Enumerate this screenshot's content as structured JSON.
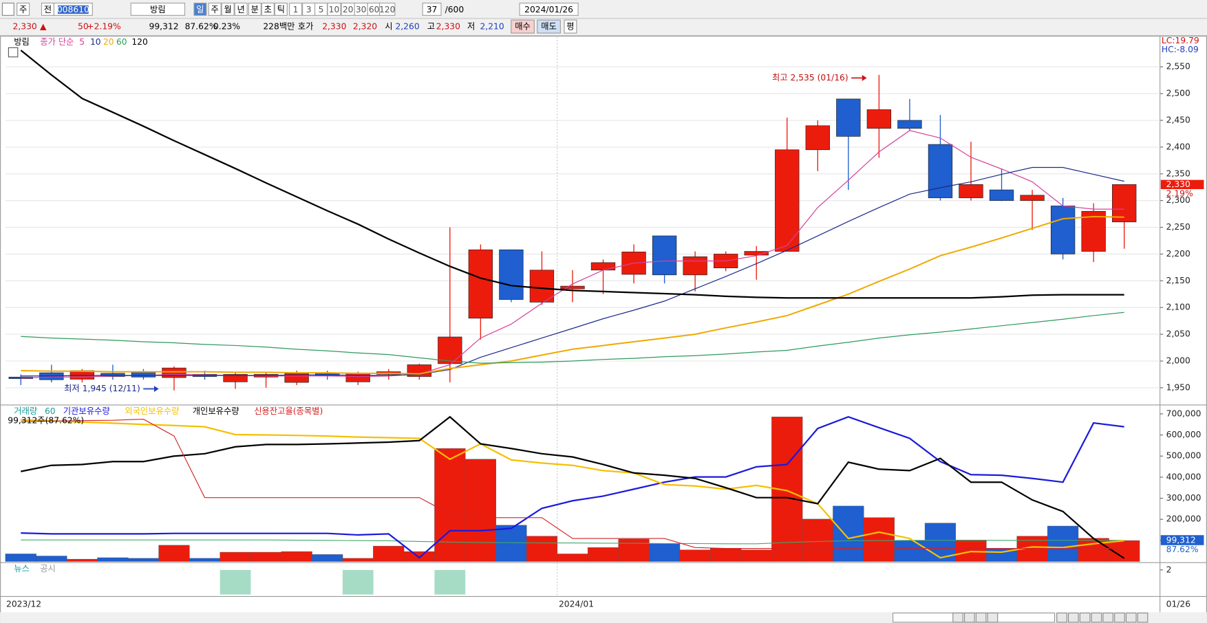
{
  "toolbar": {
    "row1": [
      "주",
      "전",
      "008610",
      "방림",
      "일",
      "주",
      "월",
      "년",
      "분",
      "초",
      "틱",
      "1",
      "3",
      "5",
      "10",
      "20",
      "30",
      "60",
      "120",
      "37",
      "/600",
      "2024/01/26"
    ],
    "row2": [
      "2,330",
      "▲",
      "50",
      "+2.19%",
      "99,312",
      "87.62%",
      "0.23%",
      "228백만",
      "호가",
      "2,330",
      "2,320",
      "시",
      "2,260",
      "고",
      "2,330",
      "저",
      "2,210",
      "매수",
      "매도",
      "평"
    ]
  },
  "chart_data": [
    {
      "type": "candlestick",
      "stock_name": "방림",
      "ma_label": "종가 단순",
      "open": [
        1970,
        1978,
        1966,
        1977,
        1980,
        1969,
        1975,
        1961,
        1970,
        1960,
        1978,
        1961,
        1975,
        1971,
        1995,
        2080,
        2208,
        2110,
        2135,
        2170,
        2162,
        2234,
        2161,
        2174,
        2198,
        2205,
        2395,
        2490,
        2435,
        2450,
        2405,
        2305,
        2320,
        2300,
        2290,
        2205,
        2260
      ],
      "high": [
        1975,
        1993,
        1985,
        1993,
        1985,
        1990,
        1982,
        1980,
        1980,
        1982,
        1982,
        1980,
        1985,
        1995,
        2250,
        2218,
        2208,
        2205,
        2170,
        2190,
        2218,
        2234,
        2205,
        2205,
        2215,
        2455,
        2450,
        2488,
        2535,
        2490,
        2460,
        2410,
        2360,
        2320,
        2305,
        2295,
        2330
      ],
      "low": [
        1955,
        1960,
        1960,
        1965,
        1965,
        1945,
        1965,
        1948,
        1950,
        1955,
        1965,
        1955,
        1965,
        1965,
        1960,
        2040,
        2110,
        2105,
        2110,
        2125,
        2145,
        2145,
        2130,
        2168,
        2152,
        2205,
        2355,
        2320,
        2380,
        2430,
        2300,
        2300,
        2299,
        2245,
        2190,
        2185,
        2210
      ],
      "close": [
        1967,
        1965,
        1982,
        1971,
        1970,
        1987,
        1971,
        1975,
        1975,
        1977,
        1973,
        1977,
        1980,
        1993,
        2045,
        2208,
        2115,
        2170,
        2140,
        2184,
        2204,
        2161,
        2195,
        2200,
        2205,
        2395,
        2440,
        2420,
        2470,
        2435,
        2305,
        2330,
        2300,
        2310,
        2200,
        2280,
        2330
      ],
      "up_color": "#ec1c0d",
      "down_color": "#1f5fcf",
      "moving_averages": [
        {
          "name": "5",
          "color": "#d8409a",
          "values": [
            1968,
            1970,
            1970,
            1972,
            1973,
            1975,
            1974,
            1973,
            1972,
            1972,
            1972,
            1971,
            1972,
            1976,
            1993,
            2043,
            2069,
            2108,
            2144,
            2170,
            2183,
            2187,
            2187,
            2187,
            2197,
            2216,
            2287,
            2338,
            2391,
            2431,
            2417,
            2381,
            2359,
            2335,
            2290,
            2284,
            2284
          ]
        },
        {
          "name": "10",
          "color": "#1c2a8c",
          "values": [
            1972,
            1972,
            1973,
            1973,
            1973,
            1973,
            1973,
            1973,
            1973,
            1974,
            1974,
            1973,
            1973,
            1975,
            1984,
            2007,
            2025,
            2043,
            2061,
            2079,
            2095,
            2112,
            2135,
            2158,
            2182,
            2207,
            2234,
            2261,
            2287,
            2312,
            2324,
            2335,
            2349,
            2362,
            2362,
            2349,
            2336
          ]
        },
        {
          "name": "20",
          "color": "#f0a800",
          "values": [
            1982,
            1981,
            1981,
            1980,
            1980,
            1980,
            1980,
            1979,
            1979,
            1978,
            1978,
            1977,
            1977,
            1976,
            1986,
            1993,
            2000,
            2011,
            2022,
            2029,
            2036,
            2043,
            2050,
            2062,
            2073,
            2085,
            2105,
            2125,
            2149,
            2172,
            2197,
            2213,
            2230,
            2248,
            2266,
            2270,
            2269
          ]
        },
        {
          "name": "60",
          "color": "#2e9a5a",
          "values": [
            2046,
            2043,
            2041,
            2039,
            2036,
            2034,
            2031,
            2029,
            2026,
            2022,
            2019,
            2015,
            2012,
            2006,
            2000,
            1996,
            1997,
            1998,
            2000,
            2003,
            2005,
            2008,
            2010,
            2013,
            2017,
            2020,
            2028,
            2035,
            2043,
            2049,
            2054,
            2060,
            2066,
            2072,
            2078,
            2085,
            2091
          ]
        },
        {
          "name": "120",
          "color": "#000000",
          "values": [
            2581,
            2535,
            2491,
            2465,
            2439,
            2412,
            2386,
            2360,
            2333,
            2307,
            2281,
            2256,
            2228,
            2202,
            2177,
            2155,
            2141,
            2136,
            2132,
            2130,
            2128,
            2126,
            2124,
            2121,
            2119,
            2118,
            2118,
            2118,
            2118,
            2118,
            2118,
            2118,
            2120,
            2123,
            2124,
            2124,
            2124
          ]
        }
      ],
      "ylim": [
        1920,
        2606
      ],
      "yticks": [
        {
          "value": 1950,
          "label": "1,950"
        },
        {
          "value": 2000,
          "label": "2,000"
        },
        {
          "value": 2050,
          "label": "2,050"
        },
        {
          "value": 2100,
          "label": "2,100"
        },
        {
          "value": 2150,
          "label": "2,150"
        },
        {
          "value": 2200,
          "label": "2,200"
        },
        {
          "value": 2250,
          "label": "2,250"
        },
        {
          "value": 2300,
          "label": "2,300"
        },
        {
          "value": 2350,
          "label": "2,350"
        },
        {
          "value": 2400,
          "label": "2,400"
        },
        {
          "value": 2450,
          "label": "2,450"
        },
        {
          "value": 2500,
          "label": "2,500"
        },
        {
          "value": 2550,
          "label": "2,550"
        }
      ],
      "grid": true,
      "lc_label": "LC:19.79",
      "hc_label": "HC:-8.09",
      "last_price_label": "2,330",
      "last_change_label": "2.19%",
      "high_annotation": "최고 2,535 (01/16)",
      "low_annotation": "최저 1,945 (12/11)",
      "x_labels": [
        "2023/12",
        "2024/01",
        "01/26"
      ]
    },
    {
      "type": "bar",
      "volume_label": "거래량",
      "info_label": "99,312주(87.62%)",
      "values": [
        36000,
        26000,
        11000,
        18000,
        15000,
        77000,
        15000,
        44000,
        44000,
        47000,
        33000,
        15000,
        73000,
        47000,
        536000,
        485000,
        172000,
        120000,
        36000,
        66000,
        106000,
        84000,
        55000,
        62000,
        55000,
        686000,
        201000,
        263000,
        208000,
        99000,
        182000,
        102000,
        62000,
        120000,
        168000,
        110000,
        99312
      ],
      "ylim": [
        0,
        737000
      ],
      "yticks": [
        {
          "value": 100000,
          "label": "100,000"
        },
        {
          "value": 200000,
          "label": "200,000"
        },
        {
          "value": 300000,
          "label": "300,000"
        },
        {
          "value": 400000,
          "label": "400,000"
        },
        {
          "value": 500000,
          "label": "500,000"
        },
        {
          "value": 600000,
          "label": "600,000"
        },
        {
          "value": 700000,
          "label": "700,000"
        }
      ],
      "series": [
        {
          "name": "60",
          "color": "#3fa86a",
          "values": [
            102000,
            102000,
            102000,
            102000,
            102000,
            102000,
            102000,
            102000,
            102000,
            101000,
            100000,
            99000,
            98000,
            95000,
            92000,
            90000,
            89000,
            88000,
            88000,
            87000,
            86000,
            85000,
            85000,
            84000,
            84000,
            90000,
            95000,
            98000,
            99000,
            100000,
            100000,
            100000,
            100000,
            100000,
            100000,
            100000,
            100000
          ]
        },
        {
          "name": "기관보유수량",
          "color": "#1a1adc",
          "values": [
            135000,
            131000,
            131000,
            131000,
            131000,
            133000,
            133000,
            133000,
            133000,
            133000,
            133000,
            126000,
            131000,
            18000,
            146000,
            146000,
            157000,
            252000,
            288000,
            310000,
            343000,
            376000,
            401000,
            401000,
            449000,
            460000,
            631000,
            686000,
            635000,
            584000,
            474000,
            412000,
            409000,
            394000,
            376000,
            657000,
            639000
          ]
        },
        {
          "name": "외국인보유수량",
          "color": "#f5c000",
          "values": [
            672000,
            667000,
            661000,
            656000,
            650000,
            645000,
            639000,
            602000,
            600000,
            598000,
            595000,
            590000,
            587000,
            584000,
            485000,
            558000,
            482000,
            467000,
            456000,
            431000,
            420000,
            365000,
            358000,
            343000,
            361000,
            336000,
            274000,
            109000,
            139000,
            109000,
            18000,
            47000,
            44000,
            69000,
            66000,
            84000,
            99000
          ]
        },
        {
          "name": "개인보유수량",
          "color": "#000000",
          "values": [
            427000,
            456000,
            460000,
            474000,
            474000,
            500000,
            511000,
            544000,
            555000,
            555000,
            558000,
            562000,
            566000,
            573000,
            686000,
            558000,
            536000,
            511000,
            496000,
            460000,
            420000,
            409000,
            394000,
            350000,
            303000,
            303000,
            274000,
            471000,
            438000,
            431000,
            489000,
            376000,
            376000,
            292000,
            237000,
            109000,
            15000
          ]
        },
        {
          "name": "신용잔고율(종목별)",
          "color": "#d42020",
          "values": [
            664000,
            666000,
            668000,
            670000,
            675000,
            595000,
            303000,
            303000,
            303000,
            303000,
            303000,
            303000,
            303000,
            303000,
            226000,
            208000,
            208000,
            208000,
            109000,
            109000,
            109000,
            109000,
            66000,
            62000,
            62000,
            62000,
            62000,
            62000,
            62000,
            62000,
            62000,
            62000,
            62000,
            62000,
            62000,
            62000,
            62000
          ]
        }
      ],
      "last_volume_label": "99,312",
      "last_ratio_label": "87.62%"
    },
    {
      "type": "bar",
      "legend": [
        "뉴스",
        "공시"
      ],
      "color": "#a6dcc6",
      "values": [
        0,
        0,
        0,
        0,
        0,
        0,
        0,
        2,
        0,
        0,
        0,
        2,
        0,
        0,
        2,
        0,
        0,
        0,
        0,
        0,
        0,
        0,
        0,
        0,
        0,
        0,
        0,
        0,
        0,
        0,
        0,
        0,
        0,
        0,
        0,
        0,
        0
      ],
      "ylim": [
        0,
        2
      ],
      "yticks": [
        2
      ]
    }
  ]
}
